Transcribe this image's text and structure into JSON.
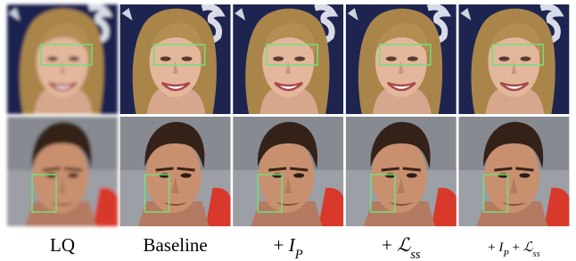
{
  "figure": {
    "columns": [
      {
        "label": [
          {
            "text": "LQ",
            "style": "roman"
          }
        ],
        "blurred": true
      },
      {
        "label": [
          {
            "text": "Baseline",
            "style": "roman"
          }
        ],
        "blurred": false
      },
      {
        "label": [
          {
            "text": "+ ",
            "style": "roman"
          },
          {
            "text": "I",
            "style": "italic"
          },
          {
            "text": "P",
            "style": "sub"
          }
        ],
        "blurred": false
      },
      {
        "label": [
          {
            "text": "+ ",
            "style": "roman"
          },
          {
            "text": "ℒ",
            "style": "italic"
          },
          {
            "text": "ss",
            "style": "sub"
          }
        ],
        "blurred": false
      },
      {
        "label": [
          {
            "text": "+ ",
            "style": "roman"
          },
          {
            "text": "I",
            "style": "italic"
          },
          {
            "text": "P",
            "style": "sub"
          },
          {
            "text": " + ",
            "style": "roman"
          },
          {
            "text": "ℒ",
            "style": "italic"
          },
          {
            "text": "ss",
            "style": "sub"
          }
        ],
        "blurred": false
      }
    ]
  }
}
